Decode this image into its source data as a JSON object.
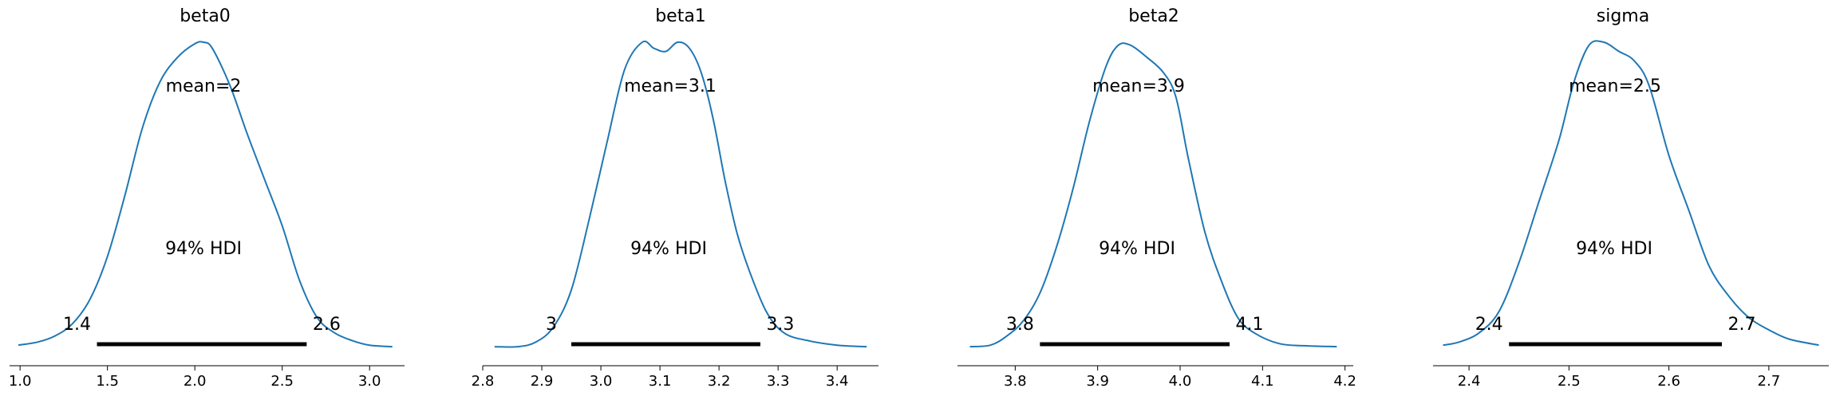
{
  "chart_data": [
    {
      "type": "area",
      "title": "beta0",
      "mean_label": "mean=2",
      "hdi_label": "94% HDI",
      "hdi_low_label": "1.4",
      "hdi_high_label": "2.6",
      "hdi": [
        1.44,
        2.64
      ],
      "xlim": [
        0.94,
        3.2
      ],
      "xticks": [
        1.0,
        1.5,
        2.0,
        2.5,
        3.0
      ],
      "xtick_labels": [
        "1.0",
        "1.5",
        "2.0",
        "2.5",
        "3.0"
      ],
      "density": {
        "x": [
          0.99,
          1.1,
          1.2,
          1.3,
          1.4,
          1.5,
          1.6,
          1.7,
          1.8,
          1.9,
          2.0,
          2.05,
          2.1,
          2.2,
          2.3,
          2.4,
          2.5,
          2.6,
          2.7,
          2.8,
          2.9,
          3.0,
          3.13
        ],
        "y": [
          0.01,
          0.02,
          0.04,
          0.08,
          0.16,
          0.3,
          0.5,
          0.72,
          0.87,
          0.95,
          0.995,
          1.0,
          0.98,
          0.86,
          0.7,
          0.55,
          0.4,
          0.22,
          0.1,
          0.05,
          0.025,
          0.01,
          0.005
        ]
      }
    },
    {
      "type": "area",
      "title": "beta1",
      "mean_label": "mean=3.1",
      "hdi_label": "94% HDI",
      "hdi_low_label": "3",
      "hdi_high_label": "3.3",
      "hdi": [
        2.95,
        3.27
      ],
      "xlim": [
        2.8,
        3.47
      ],
      "xticks": [
        2.8,
        2.9,
        3.0,
        3.1,
        3.2,
        3.3,
        3.4
      ],
      "xtick_labels": [
        "2.8",
        "2.9",
        "3.0",
        "3.1",
        "3.2",
        "3.3",
        "3.4"
      ],
      "density": {
        "x": [
          2.82,
          2.86,
          2.89,
          2.92,
          2.95,
          2.98,
          3.01,
          3.04,
          3.07,
          3.09,
          3.11,
          3.13,
          3.15,
          3.17,
          3.19,
          3.21,
          3.23,
          3.25,
          3.28,
          3.31,
          3.35,
          3.4,
          3.45
        ],
        "y": [
          0.005,
          0.005,
          0.02,
          0.07,
          0.19,
          0.42,
          0.67,
          0.91,
          1.0,
          0.98,
          0.97,
          1.0,
          0.98,
          0.9,
          0.75,
          0.55,
          0.38,
          0.26,
          0.12,
          0.05,
          0.025,
          0.01,
          0.005
        ]
      }
    },
    {
      "type": "area",
      "title": "beta2",
      "mean_label": "mean=3.9",
      "hdi_label": "94% HDI",
      "hdi_low_label": "3.8",
      "hdi_high_label": "4.1",
      "hdi": [
        3.83,
        4.06
      ],
      "xlim": [
        3.73,
        4.21
      ],
      "xticks": [
        3.8,
        3.9,
        4.0,
        4.1,
        4.2
      ],
      "xtick_labels": [
        "3.8",
        "3.9",
        "4.0",
        "4.1",
        "4.2"
      ],
      "density": {
        "x": [
          3.745,
          3.77,
          3.79,
          3.81,
          3.83,
          3.85,
          3.87,
          3.89,
          3.91,
          3.925,
          3.94,
          3.96,
          3.98,
          3.995,
          4.01,
          4.03,
          4.05,
          4.07,
          4.09,
          4.12,
          4.15,
          4.19
        ],
        "y": [
          0.005,
          0.01,
          0.04,
          0.09,
          0.18,
          0.33,
          0.52,
          0.74,
          0.92,
          0.99,
          0.99,
          0.95,
          0.9,
          0.82,
          0.62,
          0.38,
          0.22,
          0.1,
          0.05,
          0.015,
          0.008,
          0.005
        ]
      }
    },
    {
      "type": "area",
      "title": "sigma",
      "mean_label": "mean=2.5",
      "hdi_label": "94% HDI",
      "hdi_low_label": "2.4",
      "hdi_high_label": "2.7",
      "hdi": [
        2.44,
        2.653
      ],
      "xlim": [
        2.364,
        2.76
      ],
      "xticks": [
        2.4,
        2.5,
        2.6,
        2.7
      ],
      "xtick_labels": [
        "2.4",
        "2.5",
        "2.6",
        "2.7"
      ],
      "density": {
        "x": [
          2.374,
          2.39,
          2.41,
          2.43,
          2.45,
          2.47,
          2.49,
          2.505,
          2.52,
          2.535,
          2.55,
          2.565,
          2.58,
          2.6,
          2.62,
          2.64,
          2.66,
          2.68,
          2.7,
          2.72,
          2.75
        ],
        "y": [
          0.01,
          0.02,
          0.05,
          0.12,
          0.28,
          0.48,
          0.68,
          0.87,
          0.99,
          1.0,
          0.97,
          0.94,
          0.86,
          0.63,
          0.45,
          0.27,
          0.17,
          0.1,
          0.06,
          0.03,
          0.01
        ]
      }
    }
  ],
  "colors": {
    "density_line": "#1f77b4",
    "hdi_bar": "#000000",
    "axis": "#000000"
  }
}
